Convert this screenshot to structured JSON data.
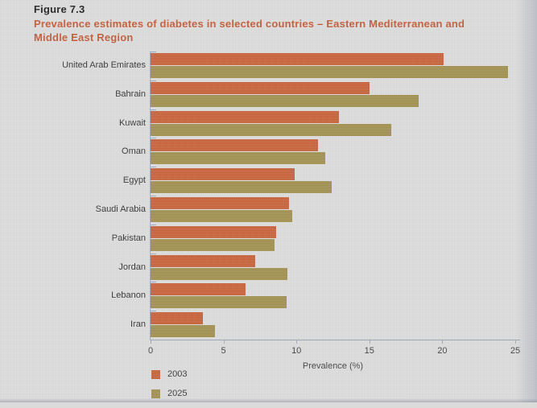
{
  "header": {
    "figure_label": "Figure 7.3",
    "title_lines": [
      "Prevalence estimates of diabetes in selected countries – Eastern Mediterranean and",
      "Middle East Region"
    ]
  },
  "chart_data": {
    "type": "bar",
    "orientation": "horizontal",
    "title": "Prevalence estimates of diabetes in selected countries – Eastern Mediterranean and Middle East Region",
    "categories": [
      "United Arab Emirates",
      "Bahrain",
      "Kuwait",
      "Oman",
      "Egypt",
      "Saudi Arabia",
      "Pakistan",
      "Jordan",
      "Lebanon",
      "Iran"
    ],
    "series": [
      {
        "name": "2003",
        "color": "#c65a2e",
        "values": [
          20.1,
          15.0,
          12.9,
          11.5,
          9.9,
          9.5,
          8.6,
          7.2,
          6.5,
          3.6
        ]
      },
      {
        "name": "2025",
        "color": "#9d8b45",
        "values": [
          24.5,
          18.4,
          16.5,
          12.0,
          12.4,
          9.7,
          8.5,
          9.4,
          9.3,
          4.4
        ]
      }
    ],
    "xlabel": "Prevalence (%)",
    "xlim": [
      0,
      25
    ],
    "xticks": [
      0,
      5,
      10,
      15,
      20,
      25
    ],
    "grid": false,
    "legend_position": "bottom-left"
  },
  "colors": {
    "title": "#c2522b",
    "bar_2003": "#c65a2e",
    "bar_2025": "#9d8b45",
    "axis": "#99a5b4",
    "page_background": "#dbdbda",
    "text": "#2b2b2b"
  }
}
